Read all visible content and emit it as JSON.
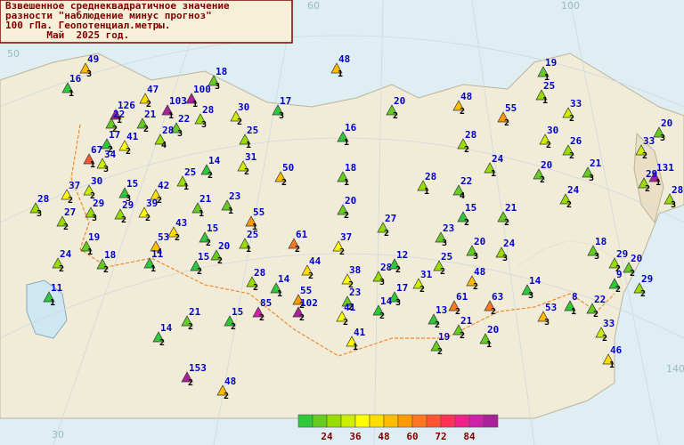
{
  "header": {
    "lines": [
      "Взвешенное среднеквадратичное значение",
      "разности \"наблюдение минус прогноз\"",
      "100 гПа. Геопотенциал.метры.",
      "       Май  2025 год."
    ]
  },
  "grid_labels": [
    "60",
    "100",
    "50",
    "30",
    "140"
  ],
  "legend": {
    "labels": [
      24,
      36,
      48,
      60,
      72,
      84
    ],
    "colors": [
      "#2ec83a",
      "#66cc22",
      "#99dd00",
      "#ccee00",
      "#ffff00",
      "#ffdd00",
      "#ffbb00",
      "#ff9900",
      "#ff7722",
      "#ff5533",
      "#ff3355",
      "#ee2288",
      "#cc22aa",
      "#aa2299"
    ]
  },
  "stations": [
    {
      "value": 49,
      "count": 3
    },
    {
      "value": 16,
      "count": 1
    },
    {
      "value": 126,
      "count": 1
    },
    {
      "value": 22,
      "count": 2
    },
    {
      "value": 47,
      "count": 2
    },
    {
      "value": 103,
      "count": 1
    },
    {
      "value": 100,
      "count": 1
    },
    {
      "value": 18,
      "count": 3
    },
    {
      "value": 21,
      "count": 2
    },
    {
      "value": 22,
      "count": 3
    },
    {
      "value": 28,
      "count": 3
    },
    {
      "value": 30,
      "count": 2
    },
    {
      "value": 17,
      "count": 3
    },
    {
      "value": 48,
      "count": 1
    },
    {
      "value": 17,
      "count": 2
    },
    {
      "value": 67,
      "count": 1
    },
    {
      "value": 41,
      "count": 2
    },
    {
      "value": 28,
      "count": 4
    },
    {
      "value": 34,
      "count": 3
    },
    {
      "value": 14,
      "count": 2
    },
    {
      "value": 25,
      "count": 1
    },
    {
      "value": 31,
      "count": 2
    },
    {
      "value": 25,
      "count": 1
    },
    {
      "value": 50,
      "count": 2
    },
    {
      "value": 37,
      "count": 2
    },
    {
      "value": 30,
      "count": 2
    },
    {
      "value": 15,
      "count": 3
    },
    {
      "value": 42,
      "count": 2
    },
    {
      "value": 28,
      "count": 3
    },
    {
      "value": 29,
      "count": 3
    },
    {
      "value": 29,
      "count": 2
    },
    {
      "value": 39,
      "count": 2
    },
    {
      "value": 21,
      "count": 1
    },
    {
      "value": 23,
      "count": 1
    },
    {
      "value": 27,
      "count": 2
    },
    {
      "value": 43,
      "count": 2
    },
    {
      "value": 53,
      "count": 4
    },
    {
      "value": 19,
      "count": 1
    },
    {
      "value": 15,
      "count": 2
    },
    {
      "value": 55,
      "count": 1
    },
    {
      "value": 24,
      "count": 2
    },
    {
      "value": 18,
      "count": 2
    },
    {
      "value": 11,
      "count": 1
    },
    {
      "value": 15,
      "count": 2
    },
    {
      "value": 20,
      "count": 2
    },
    {
      "value": 25,
      "count": 1
    },
    {
      "value": 61,
      "count": 2
    },
    {
      "value": 11,
      "count": 1
    },
    {
      "value": 28,
      "count": 2
    },
    {
      "value": 14,
      "count": 1
    },
    {
      "value": 44,
      "count": 2
    },
    {
      "value": 37,
      "count": 2
    },
    {
      "value": 38,
      "count": 2
    },
    {
      "value": 28,
      "count": 3
    },
    {
      "value": 12,
      "count": 2
    },
    {
      "value": 25,
      "count": 2
    },
    {
      "value": 20,
      "count": 3
    },
    {
      "value": 24,
      "count": 3
    },
    {
      "value": 48,
      "count": 2
    },
    {
      "value": 31,
      "count": 2
    },
    {
      "value": 17,
      "count": 3
    },
    {
      "value": 23,
      "count": 2
    },
    {
      "value": 55,
      "count": 2
    },
    {
      "value": 102,
      "count": 2
    },
    {
      "value": 85,
      "count": 2
    },
    {
      "value": 15,
      "count": 2
    },
    {
      "value": 21,
      "count": 2
    },
    {
      "value": 14,
      "count": 2
    },
    {
      "value": 41,
      "count": 2
    },
    {
      "value": 14,
      "count": 2
    },
    {
      "value": 13,
      "count": 2
    },
    {
      "value": 61,
      "count": 2
    },
    {
      "value": 63,
      "count": 2
    },
    {
      "value": 14,
      "count": 3
    },
    {
      "value": 53,
      "count": 3
    },
    {
      "value": 8,
      "count": 1
    },
    {
      "value": 22,
      "count": 2
    },
    {
      "value": 33,
      "count": 2
    },
    {
      "value": 46,
      "count": 1
    },
    {
      "value": 21,
      "count": 2
    },
    {
      "value": 20,
      "count": 1
    },
    {
      "value": 19,
      "count": 2
    },
    {
      "value": 41,
      "count": 1
    },
    {
      "value": 153,
      "count": 2
    },
    {
      "value": 48,
      "count": 2
    },
    {
      "value": 18,
      "count": 1
    },
    {
      "value": 20,
      "count": 2
    },
    {
      "value": 27,
      "count": 2
    },
    {
      "value": 28,
      "count": 1
    },
    {
      "value": 22,
      "count": 4
    },
    {
      "value": 15,
      "count": 2
    },
    {
      "value": 21,
      "count": 2
    },
    {
      "value": 23,
      "count": 3
    },
    {
      "value": 16,
      "count": 1
    },
    {
      "value": 20,
      "count": 2
    },
    {
      "value": 48,
      "count": 2
    },
    {
      "value": 28,
      "count": 2
    },
    {
      "value": 55,
      "count": 2
    },
    {
      "value": 24,
      "count": 1
    },
    {
      "value": 19,
      "count": 1
    },
    {
      "value": 25,
      "count": 1
    },
    {
      "value": 33,
      "count": 2
    },
    {
      "value": 30,
      "count": 2
    },
    {
      "value": 26,
      "count": 2
    },
    {
      "value": 20,
      "count": 2
    },
    {
      "value": 21,
      "count": 3
    },
    {
      "value": 24,
      "count": 2
    },
    {
      "value": 33,
      "count": 2
    },
    {
      "value": 20,
      "count": 3
    },
    {
      "value": 131,
      "count": 1
    },
    {
      "value": 29,
      "count": 2
    },
    {
      "value": 28,
      "count": 3
    },
    {
      "value": 18,
      "count": 3
    },
    {
      "value": 29,
      "count": 2
    },
    {
      "value": 9,
      "count": 2
    },
    {
      "value": 20,
      "count": 2
    },
    {
      "value": 29,
      "count": 2
    }
  ]
}
